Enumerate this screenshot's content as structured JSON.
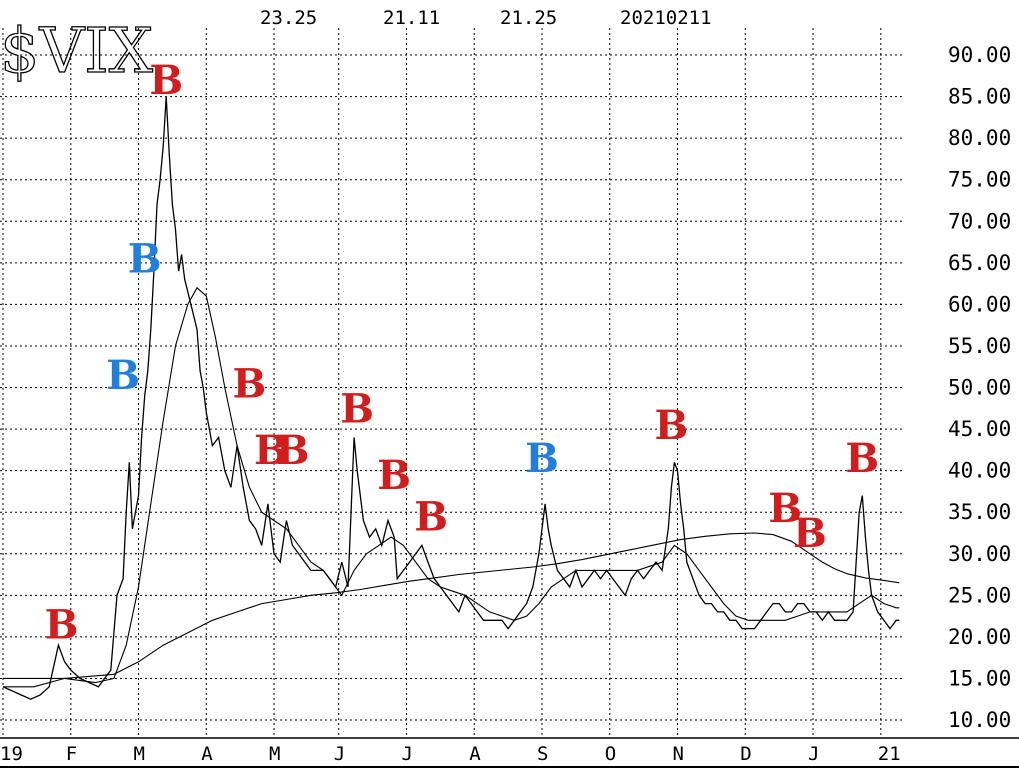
{
  "chart_data": {
    "type": "line",
    "symbol": "$VIX",
    "header_values": [
      "23.25",
      "21.11",
      "21.25",
      "20210211"
    ],
    "ylim": [
      10,
      90
    ],
    "yticks": [
      90,
      85,
      80,
      75,
      70,
      65,
      60,
      55,
      50,
      45,
      40,
      35,
      30,
      25,
      20,
      15,
      10
    ],
    "ytick_labels": [
      "90.00",
      "85.00",
      "80.00",
      "75.00",
      "70.00",
      "65.00",
      "60.00",
      "55.00",
      "50.00",
      "45.00",
      "40.00",
      "35.00",
      "30.00",
      "25.00",
      "20.00",
      "15.00",
      "10.00"
    ],
    "x_ticks": [
      {
        "d": 0,
        "label": "19"
      },
      {
        "d": 22,
        "label": "F"
      },
      {
        "d": 44,
        "label": "M"
      },
      {
        "d": 66,
        "label": "A"
      },
      {
        "d": 88,
        "label": "M"
      },
      {
        "d": 109,
        "label": "J"
      },
      {
        "d": 131,
        "label": "J"
      },
      {
        "d": 153,
        "label": "A"
      },
      {
        "d": 175,
        "label": "S"
      },
      {
        "d": 197,
        "label": "O"
      },
      {
        "d": 219,
        "label": "N"
      },
      {
        "d": 241,
        "label": "D"
      },
      {
        "d": 263,
        "label": "J"
      },
      {
        "d": 285,
        "label": "21"
      }
    ],
    "grid": true,
    "series": [
      {
        "role": "price",
        "color": "#000000",
        "points": [
          [
            0,
            14
          ],
          [
            3,
            13.5
          ],
          [
            6,
            13
          ],
          [
            9,
            12.5
          ],
          [
            12,
            13
          ],
          [
            15,
            14
          ],
          [
            18,
            19
          ],
          [
            20,
            17
          ],
          [
            22,
            16
          ],
          [
            25,
            15
          ],
          [
            28,
            14.5
          ],
          [
            31,
            14
          ],
          [
            33,
            15
          ],
          [
            35,
            16
          ],
          [
            37,
            25
          ],
          [
            39,
            27
          ],
          [
            40,
            35
          ],
          [
            41,
            41
          ],
          [
            42,
            33
          ],
          [
            44,
            37
          ],
          [
            45,
            44
          ],
          [
            46,
            49
          ],
          [
            47,
            52
          ],
          [
            48,
            57
          ],
          [
            49,
            64
          ],
          [
            50,
            72
          ],
          [
            51,
            75
          ],
          [
            52,
            79
          ],
          [
            53,
            85
          ],
          [
            54,
            78
          ],
          [
            55,
            72
          ],
          [
            56,
            69
          ],
          [
            57,
            64
          ],
          [
            58,
            66
          ],
          [
            59,
            63
          ],
          [
            61,
            60
          ],
          [
            63,
            57
          ],
          [
            64,
            52
          ],
          [
            65,
            50
          ],
          [
            66,
            47
          ],
          [
            68,
            43
          ],
          [
            70,
            44
          ],
          [
            72,
            40
          ],
          [
            74,
            38
          ],
          [
            76,
            43
          ],
          [
            78,
            38
          ],
          [
            80,
            34
          ],
          [
            82,
            33
          ],
          [
            84,
            31
          ],
          [
            86,
            36
          ],
          [
            88,
            30
          ],
          [
            90,
            29
          ],
          [
            92,
            34
          ],
          [
            94,
            31
          ],
          [
            96,
            30
          ],
          [
            98,
            29
          ],
          [
            100,
            28
          ],
          [
            102,
            28
          ],
          [
            104,
            28
          ],
          [
            106,
            27
          ],
          [
            108,
            26
          ],
          [
            110,
            29
          ],
          [
            112,
            26
          ],
          [
            114,
            44
          ],
          [
            115,
            40
          ],
          [
            117,
            34
          ],
          [
            119,
            32
          ],
          [
            121,
            33
          ],
          [
            123,
            31
          ],
          [
            125,
            34
          ],
          [
            127,
            32
          ],
          [
            128,
            27
          ],
          [
            130,
            28
          ],
          [
            132,
            29
          ],
          [
            134,
            30
          ],
          [
            136,
            31
          ],
          [
            138,
            29
          ],
          [
            140,
            27
          ],
          [
            142,
            26
          ],
          [
            144,
            25
          ],
          [
            146,
            24
          ],
          [
            148,
            23
          ],
          [
            150,
            25
          ],
          [
            152,
            24
          ],
          [
            154,
            23
          ],
          [
            156,
            22
          ],
          [
            158,
            22
          ],
          [
            160,
            22
          ],
          [
            162,
            22
          ],
          [
            164,
            21
          ],
          [
            166,
            22
          ],
          [
            168,
            23
          ],
          [
            170,
            24
          ],
          [
            172,
            26
          ],
          [
            174,
            30
          ],
          [
            175,
            33
          ],
          [
            176,
            36
          ],
          [
            177,
            33
          ],
          [
            178,
            31
          ],
          [
            180,
            28
          ],
          [
            182,
            27
          ],
          [
            184,
            26
          ],
          [
            186,
            28
          ],
          [
            188,
            26
          ],
          [
            190,
            27
          ],
          [
            192,
            28
          ],
          [
            194,
            27
          ],
          [
            196,
            28
          ],
          [
            198,
            27
          ],
          [
            200,
            26
          ],
          [
            202,
            25
          ],
          [
            204,
            27
          ],
          [
            206,
            28
          ],
          [
            208,
            27
          ],
          [
            210,
            28
          ],
          [
            212,
            29
          ],
          [
            214,
            28
          ],
          [
            216,
            33
          ],
          [
            217,
            38
          ],
          [
            218,
            41
          ],
          [
            219,
            40
          ],
          [
            220,
            36
          ],
          [
            221,
            33
          ],
          [
            222,
            29
          ],
          [
            224,
            27
          ],
          [
            226,
            25
          ],
          [
            228,
            24
          ],
          [
            230,
            24
          ],
          [
            232,
            23
          ],
          [
            234,
            23
          ],
          [
            236,
            22
          ],
          [
            238,
            22
          ],
          [
            240,
            21
          ],
          [
            242,
            21
          ],
          [
            244,
            21
          ],
          [
            246,
            22
          ],
          [
            248,
            23
          ],
          [
            250,
            24
          ],
          [
            252,
            24
          ],
          [
            254,
            23
          ],
          [
            256,
            23
          ],
          [
            258,
            24
          ],
          [
            260,
            24
          ],
          [
            262,
            23
          ],
          [
            264,
            23
          ],
          [
            266,
            22
          ],
          [
            268,
            23
          ],
          [
            270,
            22
          ],
          [
            272,
            22
          ],
          [
            274,
            22
          ],
          [
            276,
            23
          ],
          [
            278,
            35
          ],
          [
            279,
            37
          ],
          [
            280,
            32
          ],
          [
            281,
            28
          ],
          [
            282,
            25
          ],
          [
            284,
            23
          ],
          [
            286,
            22
          ],
          [
            288,
            21
          ],
          [
            290,
            22
          ],
          [
            291,
            22
          ]
        ]
      },
      {
        "role": "short_moving_average",
        "color": "#000000",
        "points": [
          [
            0,
            14
          ],
          [
            10,
            14
          ],
          [
            20,
            15
          ],
          [
            30,
            14.5
          ],
          [
            36,
            15
          ],
          [
            40,
            19
          ],
          [
            44,
            26
          ],
          [
            48,
            36
          ],
          [
            52,
            46
          ],
          [
            56,
            55
          ],
          [
            60,
            60
          ],
          [
            63,
            62
          ],
          [
            66,
            61
          ],
          [
            69,
            56
          ],
          [
            72,
            50
          ],
          [
            76,
            43
          ],
          [
            80,
            38
          ],
          [
            84,
            35
          ],
          [
            88,
            34
          ],
          [
            92,
            33
          ],
          [
            96,
            31
          ],
          [
            100,
            29
          ],
          [
            104,
            28
          ],
          [
            108,
            26
          ],
          [
            110,
            25
          ],
          [
            114,
            28
          ],
          [
            118,
            30
          ],
          [
            122,
            31
          ],
          [
            126,
            32
          ],
          [
            130,
            31
          ],
          [
            134,
            29
          ],
          [
            138,
            27
          ],
          [
            142,
            26
          ],
          [
            146,
            25.5
          ],
          [
            150,
            25
          ],
          [
            154,
            24
          ],
          [
            158,
            23
          ],
          [
            162,
            22.5
          ],
          [
            166,
            22
          ],
          [
            170,
            22.5
          ],
          [
            174,
            24
          ],
          [
            178,
            26
          ],
          [
            182,
            27
          ],
          [
            186,
            28
          ],
          [
            190,
            28
          ],
          [
            194,
            28
          ],
          [
            198,
            28
          ],
          [
            202,
            28
          ],
          [
            206,
            28
          ],
          [
            210,
            28.5
          ],
          [
            214,
            29
          ],
          [
            218,
            31
          ],
          [
            222,
            30
          ],
          [
            226,
            28
          ],
          [
            230,
            26
          ],
          [
            234,
            24
          ],
          [
            238,
            22.5
          ],
          [
            242,
            22
          ],
          [
            246,
            22
          ],
          [
            250,
            22
          ],
          [
            254,
            22
          ],
          [
            258,
            22.5
          ],
          [
            262,
            23
          ],
          [
            266,
            23
          ],
          [
            270,
            23
          ],
          [
            274,
            23
          ],
          [
            278,
            24
          ],
          [
            282,
            25
          ],
          [
            286,
            24
          ],
          [
            290,
            23.5
          ],
          [
            291,
            23.5
          ]
        ]
      },
      {
        "role": "long_moving_average",
        "color": "#000000",
        "points": [
          [
            0,
            15
          ],
          [
            20,
            15
          ],
          [
            36,
            15.5
          ],
          [
            44,
            17
          ],
          [
            52,
            19
          ],
          [
            60,
            20.5
          ],
          [
            68,
            22
          ],
          [
            76,
            23
          ],
          [
            84,
            24
          ],
          [
            92,
            24.5
          ],
          [
            100,
            25
          ],
          [
            108,
            25.3
          ],
          [
            116,
            25.7
          ],
          [
            124,
            26.2
          ],
          [
            132,
            26.7
          ],
          [
            140,
            27.1
          ],
          [
            148,
            27.5
          ],
          [
            156,
            27.8
          ],
          [
            164,
            28.1
          ],
          [
            172,
            28.4
          ],
          [
            180,
            28.8
          ],
          [
            188,
            29.3
          ],
          [
            196,
            29.9
          ],
          [
            204,
            30.5
          ],
          [
            212,
            31.1
          ],
          [
            220,
            31.7
          ],
          [
            228,
            32.1
          ],
          [
            236,
            32.4
          ],
          [
            244,
            32.5
          ],
          [
            250,
            32.3
          ],
          [
            256,
            31.5
          ],
          [
            262,
            30
          ],
          [
            266,
            29
          ],
          [
            270,
            28.2
          ],
          [
            274,
            27.6
          ],
          [
            280,
            27.1
          ],
          [
            286,
            26.8
          ],
          [
            291,
            26.5
          ]
        ]
      }
    ],
    "signals": [
      {
        "d": 19,
        "value": 21.5,
        "label": "B",
        "color": "#d41c1c"
      },
      {
        "d": 39,
        "value": 51.5,
        "label": "B",
        "color": "#1e7fe0"
      },
      {
        "d": 46,
        "value": 65.5,
        "label": "B",
        "color": "#1e7fe0"
      },
      {
        "d": 53,
        "value": 87,
        "label": "B",
        "color": "#d41c1c"
      },
      {
        "d": 80,
        "value": 50.5,
        "label": "B",
        "color": "#d41c1c"
      },
      {
        "d": 87,
        "value": 42.5,
        "label": "B",
        "color": "#d41c1c"
      },
      {
        "d": 94,
        "value": 42.5,
        "label": "B",
        "color": "#d41c1c"
      },
      {
        "d": 115,
        "value": 47.5,
        "label": "B",
        "color": "#d41c1c"
      },
      {
        "d": 127,
        "value": 39.5,
        "label": "B",
        "color": "#d41c1c"
      },
      {
        "d": 139,
        "value": 34.5,
        "label": "B",
        "color": "#d41c1c"
      },
      {
        "d": 175,
        "value": 41.5,
        "label": "B",
        "color": "#1e7fe0"
      },
      {
        "d": 217,
        "value": 45.5,
        "label": "B",
        "color": "#d41c1c"
      },
      {
        "d": 254,
        "value": 35.5,
        "label": "B",
        "color": "#d41c1c"
      },
      {
        "d": 262,
        "value": 32.5,
        "label": "B",
        "color": "#d41c1c"
      },
      {
        "d": 279,
        "value": 41.5,
        "label": "B",
        "color": "#d41c1c"
      }
    ]
  }
}
